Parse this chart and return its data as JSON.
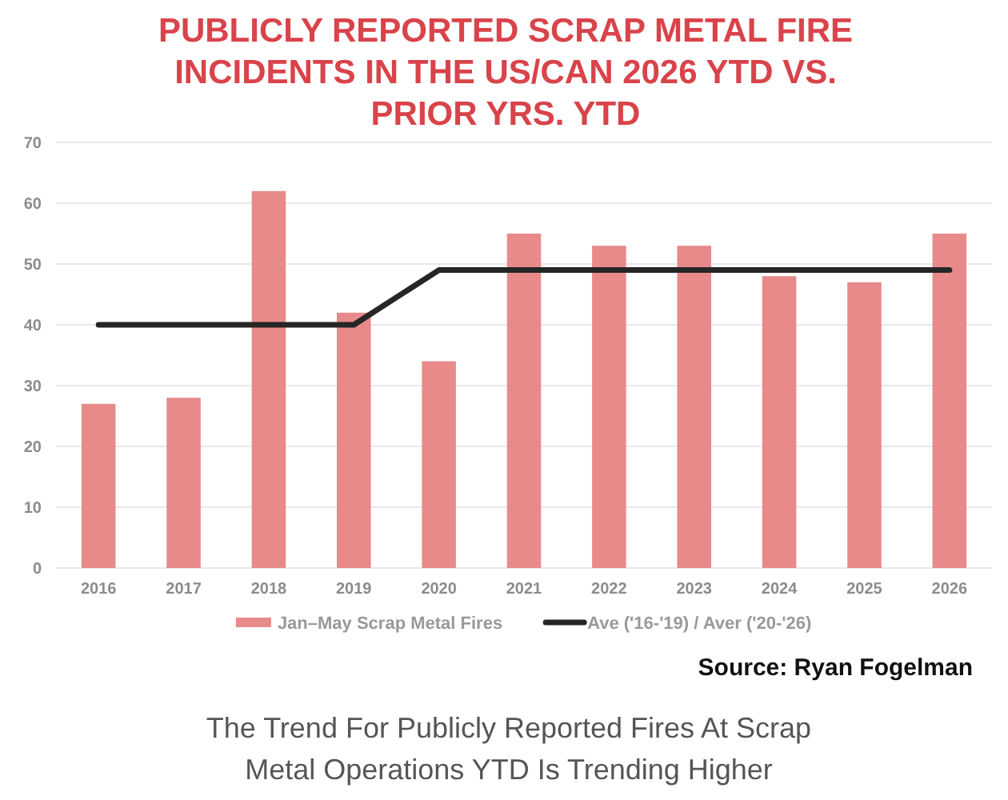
{
  "chart_data": {
    "type": "bar",
    "title": "PUBLICLY REPORTED SCRAP METAL FIRE INCIDENTS IN THE US/CAN 2026 YTD VS. PRIOR YRS. YTD",
    "categories": [
      "2016",
      "2017",
      "2018",
      "2019",
      "2020",
      "2021",
      "2022",
      "2023",
      "2024",
      "2025",
      "2026"
    ],
    "series": [
      {
        "name": "Jan–May Scrap Metal Fires",
        "color": "#e88a8a",
        "values": [
          27,
          28,
          62,
          42,
          34,
          55,
          53,
          53,
          48,
          47,
          55
        ]
      },
      {
        "name": "Ave ('16-'19) / Aver ('20-'26)",
        "type": "line",
        "color": "#262626",
        "values": [
          40,
          40,
          40,
          40,
          49,
          49,
          49,
          49,
          49,
          49,
          49
        ]
      }
    ],
    "ylim": [
      0,
      70
    ],
    "yticks": [
      0,
      10,
      20,
      30,
      40,
      50,
      60,
      70
    ],
    "grid": "y",
    "legend": "bottom",
    "marker": "none",
    "line_style": "solid",
    "annotations": [
      "Source: Ryan Fogelman",
      "The Trend For Publicly Reported Fires At Scrap Metal Operations YTD Is Trending Higher"
    ]
  }
}
